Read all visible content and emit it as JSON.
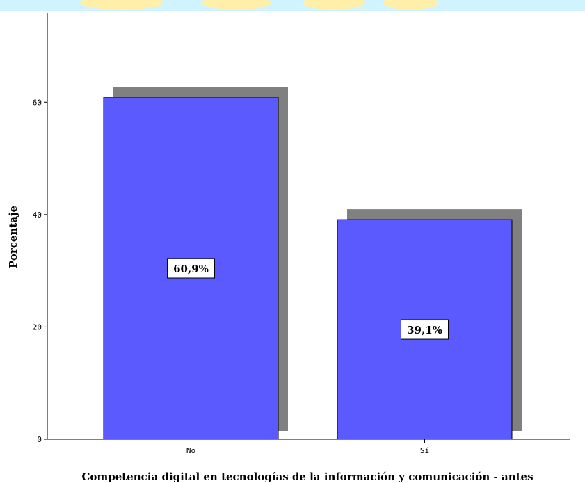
{
  "colors": {
    "bar_fill": "#5A5AFF",
    "bar_shadow": "#808080",
    "top_band_blue": "#CFF3FF",
    "top_band_yellow": "#FFEFA8",
    "axis": "#000000"
  },
  "chart_data": {
    "type": "bar",
    "title": "",
    "xlabel": "Competencia digital en tecnologías de la información y comunicación - antes",
    "ylabel": "Porcentaje",
    "categories": [
      "No",
      "Sí"
    ],
    "values": [
      60.9,
      39.1
    ],
    "data_labels": [
      "60,9%",
      "39,1%"
    ],
    "y_ticks": [
      "0",
      "20",
      "40",
      "60"
    ],
    "ylim": [
      0,
      76
    ],
    "grid": false,
    "legend": "none",
    "bar_style": "3d-shadow"
  }
}
